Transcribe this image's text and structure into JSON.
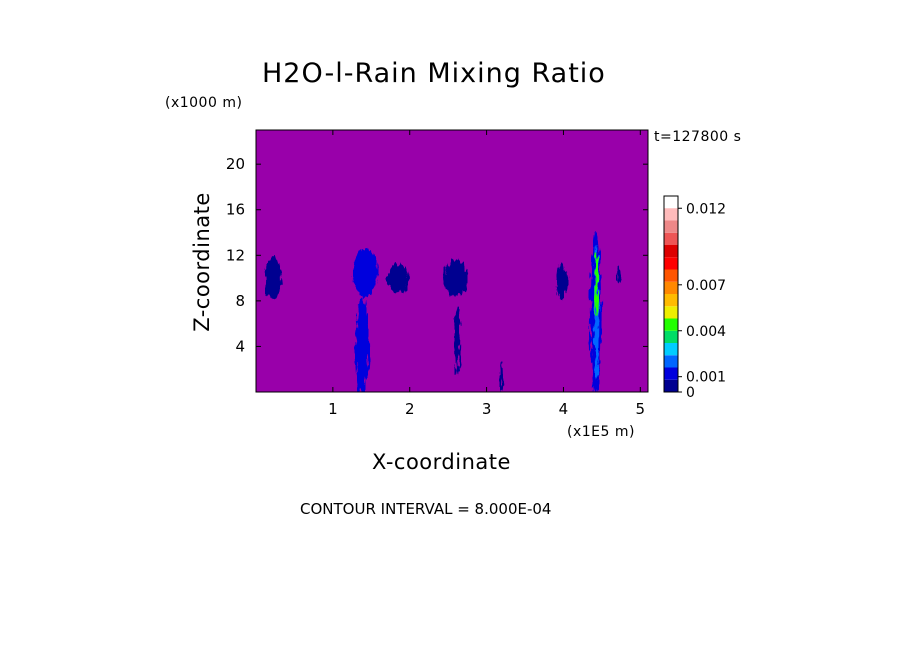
{
  "chart_data": {
    "type": "heatmap",
    "title": "H2O-l-Rain Mixing Ratio",
    "xlabel": "X-coordinate",
    "ylabel": "Z-coordinate",
    "x_unit": "(x1E5 m)",
    "z_unit": "(x1000 m)",
    "time_label": "t=127800 s",
    "contour_interval": "CONTOUR INTERVAL = 8.000E-04",
    "xlim": [
      0,
      5.1
    ],
    "ylim": [
      0,
      23
    ],
    "x_ticks": [
      {
        "value": 1,
        "label": "1"
      },
      {
        "value": 2,
        "label": "2"
      },
      {
        "value": 3,
        "label": "3"
      },
      {
        "value": 4,
        "label": "4"
      },
      {
        "value": 5,
        "label": "5"
      }
    ],
    "y_ticks": [
      {
        "value": 4,
        "label": "4"
      },
      {
        "value": 8,
        "label": "8"
      },
      {
        "value": 12,
        "label": "12"
      },
      {
        "value": 16,
        "label": "16"
      },
      {
        "value": 20,
        "label": "20"
      }
    ],
    "background_color": "#9900aa",
    "colorbar": {
      "levels": [
        0,
        0.0008,
        0.0016,
        0.0024,
        0.0032,
        0.004,
        0.0048,
        0.0056,
        0.0064,
        0.0072,
        0.008,
        0.0088,
        0.0096,
        0.0104,
        0.0112,
        0.012,
        0.0128
      ],
      "colors": [
        "#000090",
        "#0000dd",
        "#0066ff",
        "#00ccff",
        "#00dd66",
        "#22ff00",
        "#eeee00",
        "#ffbb00",
        "#ff8800",
        "#ff5500",
        "#ff0000",
        "#dd0000",
        "#ee5555",
        "#ee8888",
        "#ffbbbb"
      ],
      "labels": [
        {
          "value": 0,
          "label": "0"
        },
        {
          "value": 0.001,
          "label": "0.001"
        },
        {
          "value": 0.004,
          "label": "0.004"
        },
        {
          "value": 0.007,
          "label": "0.007"
        },
        {
          "value": 0.012,
          "label": "0.012"
        }
      ]
    },
    "features": [
      {
        "x": 0.22,
        "z": 10.0,
        "w": 0.22,
        "h": 3.6,
        "value": 0.0006
      },
      {
        "x": 1.42,
        "z": 10.5,
        "w": 0.32,
        "h": 4.2,
        "value": 0.0008
      },
      {
        "x": 1.38,
        "z": 4.0,
        "w": 0.17,
        "h": 8.5,
        "value": 0.0008
      },
      {
        "x": 1.85,
        "z": 10.0,
        "w": 0.28,
        "h": 2.5,
        "value": 0.0005
      },
      {
        "x": 2.6,
        "z": 10.0,
        "w": 0.32,
        "h": 3.2,
        "value": 0.0007
      },
      {
        "x": 2.62,
        "z": 4.5,
        "w": 0.06,
        "h": 6.0,
        "value": 0.0006
      },
      {
        "x": 3.2,
        "z": 1.3,
        "w": 0.05,
        "h": 2.8,
        "value": 0.0006
      },
      {
        "x": 3.98,
        "z": 9.7,
        "w": 0.14,
        "h": 3.2,
        "value": 0.0005
      },
      {
        "x": 4.42,
        "z": 7.0,
        "w": 0.14,
        "h": 14.5,
        "value": 0.0008
      },
      {
        "x": 4.43,
        "z": 7.0,
        "w": 0.06,
        "h": 12.0,
        "value": 0.0018
      },
      {
        "x": 4.43,
        "z": 9.5,
        "w": 0.04,
        "h": 5.5,
        "value": 0.0045
      },
      {
        "x": 4.72,
        "z": 10.3,
        "w": 0.06,
        "h": 1.2,
        "value": 0.0004
      }
    ]
  }
}
